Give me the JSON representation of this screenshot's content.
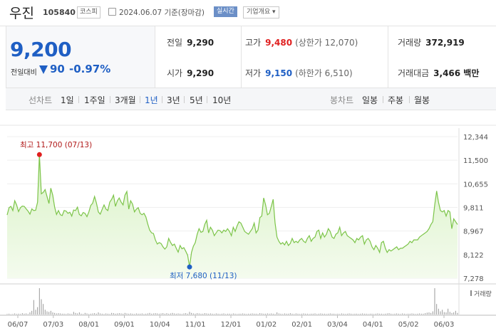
{
  "header": {
    "stock_name": "우진",
    "stock_code": "105840",
    "market_badge": "코스피",
    "date_text": "2024.06.07 기준(장마감)",
    "realtime_badge": "실시간",
    "company_button": "기업개요 ▾"
  },
  "quote": {
    "price": "9,200",
    "diff_label": "전일대비",
    "change": "90",
    "change_pct": "-0.97%",
    "prev_close_label": "전일",
    "prev_close": "9,290",
    "high_label": "고가",
    "high": "9,480",
    "upper_limit": "(상한가 12,070)",
    "volume_label": "거래량",
    "volume": "372,919",
    "open_label": "시가",
    "open": "9,290",
    "low_label": "저가",
    "low": "9,150",
    "lower_limit": "(하한가 6,510)",
    "amount_label": "거래대금",
    "amount": "3,466 백만"
  },
  "periods": {
    "line_label": "선차트",
    "line_items": [
      "1일",
      "1주일",
      "3개월",
      "1년",
      "3년",
      "5년",
      "10년"
    ],
    "selected": "1년",
    "candle_label": "봉차트",
    "candle_items": [
      "일봉",
      "주봉",
      "월봉"
    ]
  },
  "colors": {
    "line": "#7cc449",
    "fill_top": "#d9f2c6",
    "fill_bottom": "#f4fbee",
    "price_blue": "#1f5fc4",
    "high_red": "#e02020"
  },
  "chart_data": {
    "type": "area",
    "y_ticks": [
      "12,344",
      "11,500",
      "10,655",
      "9,811",
      "8,967",
      "8,122",
      "7,278"
    ],
    "ylim": [
      7278,
      12344
    ],
    "x_ticks": [
      "06/07",
      "07/03",
      "08/01",
      "09/01",
      "10/04",
      "11/01",
      "12/01",
      "01/02",
      "02/01",
      "03/04",
      "04/01",
      "05/02",
      "06/03"
    ],
    "annotations": {
      "high": "최고 11,700 (07/13)",
      "low": "최저 7,680 (11/13)"
    },
    "volume_label": "거래량",
    "series": [
      {
        "values": [
          9540,
          9800,
          9850,
          9700,
          10050,
          9900,
          9660,
          9800,
          9860,
          9850,
          9760,
          9680,
          9570,
          9760,
          9700,
          9710,
          10000,
          11700,
          10300,
          10350,
          10450,
          10200,
          9950,
          10500,
          10250,
          9820,
          9560,
          9700,
          9550,
          9520,
          9700,
          9680,
          9600,
          9640,
          9500,
          9720,
          9700,
          9820,
          9560,
          9510,
          9630,
          9600,
          9480,
          9650,
          9880,
          9960,
          10200,
          9970,
          9650,
          9570,
          9740,
          9900,
          9750,
          9700,
          10000,
          10100,
          10250,
          9850,
          10050,
          10150,
          10000,
          9900,
          10250,
          10380,
          9750,
          10050,
          9930,
          9650,
          9750,
          9800,
          9600,
          9550,
          9600,
          9470,
          9220,
          9000,
          8900,
          8880,
          8650,
          8500,
          8550,
          8520,
          8400,
          8320,
          8400,
          8700,
          8560,
          8450,
          8500,
          8350,
          8210,
          8450,
          8330,
          8370,
          8240,
          8100,
          7680,
          8200,
          8420,
          8550,
          8850,
          9050,
          8920,
          8950,
          9200,
          9350,
          8900,
          9100,
          9000,
          8800,
          8900,
          9000,
          8980,
          8900,
          9000,
          8950,
          9050,
          8950,
          8800,
          9100,
          8950,
          9150,
          9300,
          9250,
          9100,
          8950,
          8900,
          8850,
          8950,
          9050,
          9250,
          8900,
          9000,
          9450,
          9500,
          10150,
          9900,
          9550,
          9600,
          9850,
          10100,
          9250,
          8750,
          8600,
          8500,
          8550,
          8470,
          8600,
          8450,
          8520,
          8700,
          8550,
          8600,
          8550,
          8650,
          8700,
          8600,
          8550,
          8700,
          8800,
          8600,
          8700,
          8750,
          8950,
          9000,
          8700,
          8900,
          8750,
          8850,
          9050,
          8950,
          8750,
          8700,
          8850,
          8900,
          9100,
          8800,
          8900,
          8950,
          8800,
          8750,
          8700,
          8650,
          8550,
          8700,
          8650,
          8750,
          8800,
          8500,
          8650,
          8700,
          8600,
          8400,
          8300,
          8450,
          8350,
          8200,
          8550,
          8600,
          8350,
          8200,
          8300,
          8250,
          8300,
          8350,
          8400,
          8300,
          8350,
          8350,
          8400,
          8450,
          8500,
          8600,
          8550,
          8650,
          8650,
          8650,
          8750,
          8800,
          8850,
          8900,
          8950,
          9050,
          9200,
          9300,
          9900,
          10400,
          10000,
          9700,
          9650,
          9700,
          9500,
          9700,
          9650,
          9050,
          9400,
          9300,
          9200
        ]
      },
      {
        "name": "거래량",
        "values": [
          2,
          3,
          1,
          2,
          4,
          2,
          3,
          2,
          5,
          3,
          4,
          2,
          8,
          14,
          55,
          18,
          28,
          100,
          58,
          40,
          18,
          12,
          10,
          14,
          8,
          6,
          4,
          5,
          4,
          3,
          3,
          2,
          4,
          3,
          2,
          10,
          6,
          4,
          8,
          3,
          2,
          6,
          4,
          2,
          3,
          4,
          5,
          3,
          8,
          4,
          3,
          2,
          4,
          3,
          2,
          6,
          5,
          3,
          4,
          5,
          4,
          3,
          6,
          4,
          3,
          4,
          3,
          2,
          4,
          3,
          3,
          4,
          2,
          3,
          4,
          6,
          3,
          4,
          5,
          4,
          3,
          4,
          5,
          3,
          5,
          3,
          4,
          6,
          4,
          3,
          4,
          3,
          2,
          4,
          5,
          3,
          10,
          6,
          4,
          3,
          5,
          4,
          3,
          3,
          5,
          4,
          3,
          4,
          3,
          2,
          4,
          3,
          2,
          3,
          4,
          2,
          3,
          3,
          2,
          4,
          3,
          2,
          3,
          3,
          4,
          3,
          2,
          3,
          3,
          4,
          3,
          3,
          2,
          5,
          4,
          3,
          3,
          4,
          3,
          4,
          3,
          2,
          8,
          4,
          3,
          2,
          4,
          3,
          3,
          5,
          3,
          2,
          4,
          3,
          2,
          3,
          4,
          3,
          3,
          2,
          3,
          3,
          4,
          2,
          3,
          4,
          3,
          3,
          2,
          3,
          4,
          3,
          3,
          2,
          3,
          2,
          4,
          3,
          2,
          3,
          4,
          3,
          2,
          3,
          3,
          2,
          3,
          4,
          3,
          3,
          2,
          3,
          3,
          2,
          3,
          4,
          3,
          3,
          2,
          3,
          4,
          5,
          3,
          2,
          3,
          4,
          3,
          2,
          4,
          3,
          2,
          3,
          3,
          4,
          3,
          2,
          3,
          4,
          3,
          3,
          5,
          7,
          8,
          6,
          12,
          100,
          40,
          22,
          12,
          18,
          9,
          8,
          22,
          10,
          6,
          8,
          14,
          6
        ]
      }
    ]
  }
}
